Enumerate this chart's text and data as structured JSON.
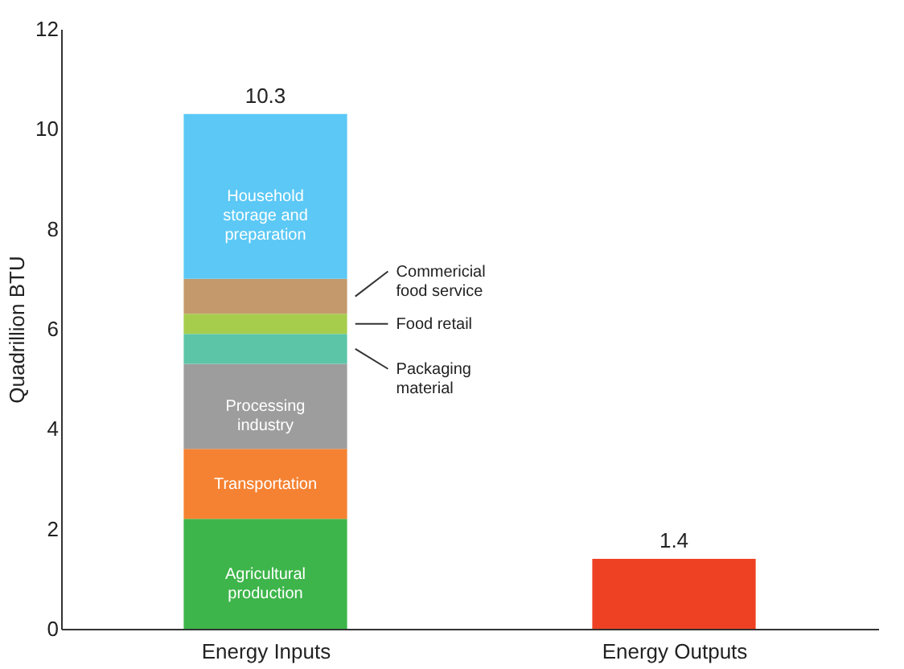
{
  "chart_data": {
    "type": "bar",
    "stacked": true,
    "categories": [
      "Energy Inputs",
      "Energy Outputs"
    ],
    "ylabel": "Quadrillion BTU",
    "ylim": [
      0,
      12
    ],
    "yticks": [
      0,
      2,
      4,
      6,
      8,
      10,
      12
    ],
    "grid": false,
    "series": [
      {
        "name": "Agricultural production",
        "color": "#3db54a",
        "values": [
          2.2,
          null
        ]
      },
      {
        "name": "Transportation",
        "color": "#f58232",
        "values": [
          1.4,
          null
        ]
      },
      {
        "name": "Processing industry",
        "color": "#9d9d9d",
        "values": [
          1.7,
          null
        ]
      },
      {
        "name": "Packaging material",
        "color": "#5cc5a8",
        "values": [
          0.6,
          null
        ]
      },
      {
        "name": "Food retail",
        "color": "#a6ce4c",
        "values": [
          0.4,
          null
        ]
      },
      {
        "name": "Commericial food service",
        "color": "#c49a6c",
        "values": [
          0.7,
          null
        ]
      },
      {
        "name": "Household storage and preparation",
        "color": "#5bc8f5",
        "values": [
          3.3,
          null
        ]
      },
      {
        "color": "#ee4123",
        "values": [
          null,
          1.4
        ]
      }
    ],
    "totals": [
      "10.3",
      "1.4"
    ]
  }
}
